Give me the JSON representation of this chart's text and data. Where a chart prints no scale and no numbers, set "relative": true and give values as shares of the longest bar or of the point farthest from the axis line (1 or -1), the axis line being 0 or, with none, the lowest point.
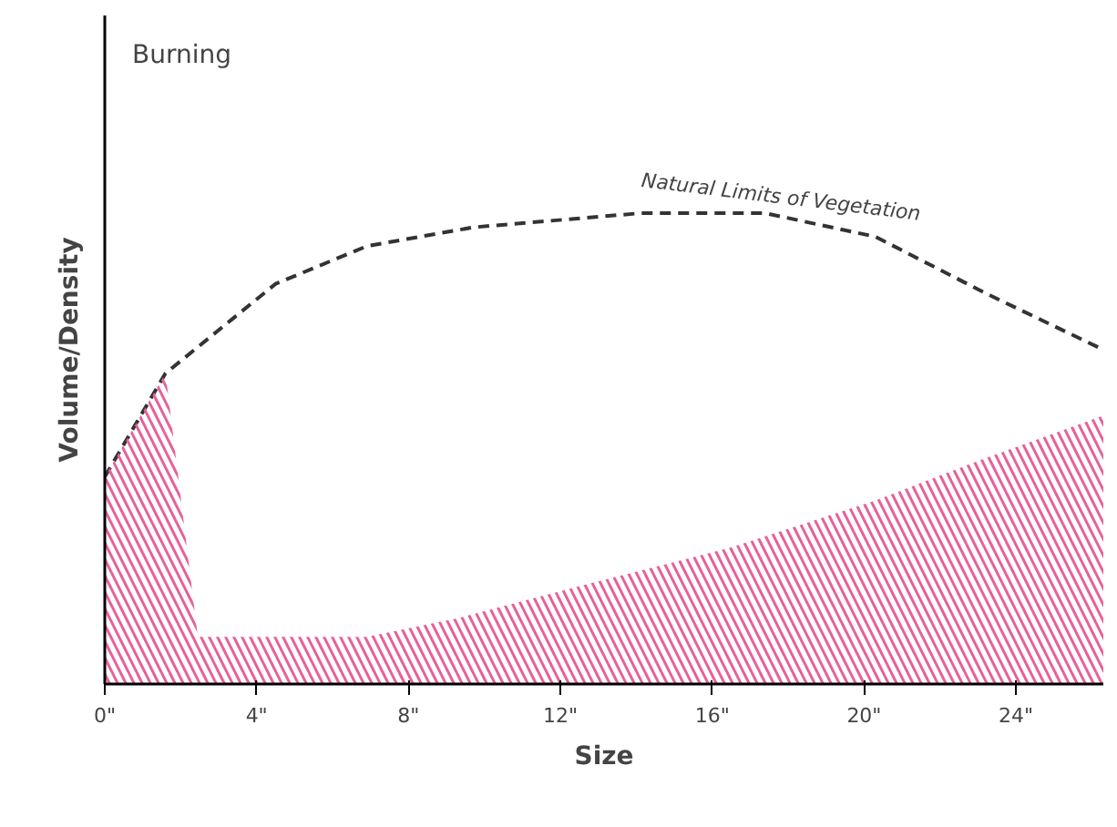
{
  "chart_data": {
    "type": "area",
    "relative": true,
    "xlabel": "Size",
    "ylabel": "Volume/Density",
    "annotations": [
      "Burning"
    ],
    "xlim": [
      0,
      26.3
    ],
    "xticks": [
      {
        "value": 0,
        "label": "0\""
      },
      {
        "value": 4,
        "label": "4\""
      },
      {
        "value": 8,
        "label": "8\""
      },
      {
        "value": 12,
        "label": "12\""
      },
      {
        "value": 16,
        "label": "16\""
      },
      {
        "value": 20,
        "label": "20\""
      },
      {
        "value": 24,
        "label": "24\""
      }
    ],
    "grid": false,
    "series": [
      {
        "name": "Natural Limits of Vegetation",
        "type": "line",
        "line_style": "dashed",
        "color": "#333333",
        "x": [
          0,
          1.6,
          4.5,
          6.9,
          9.7,
          14.1,
          17.4,
          20.3,
          23.2,
          26.3
        ],
        "values": [
          0.44,
          0.66,
          0.85,
          0.93,
          0.97,
          1.0,
          1.0,
          0.95,
          0.83,
          0.71
        ]
      },
      {
        "color": "#e8609a",
        "x": [
          0,
          1.6,
          2.45,
          3.5,
          6.9,
          9.3,
          12.6,
          16.5,
          20.3,
          23.2,
          26.3
        ],
        "values": [
          0.44,
          0.66,
          0.1,
          0.1,
          0.1,
          0.14,
          0.21,
          0.29,
          0.39,
          0.48,
          0.57
        ]
      }
    ]
  }
}
